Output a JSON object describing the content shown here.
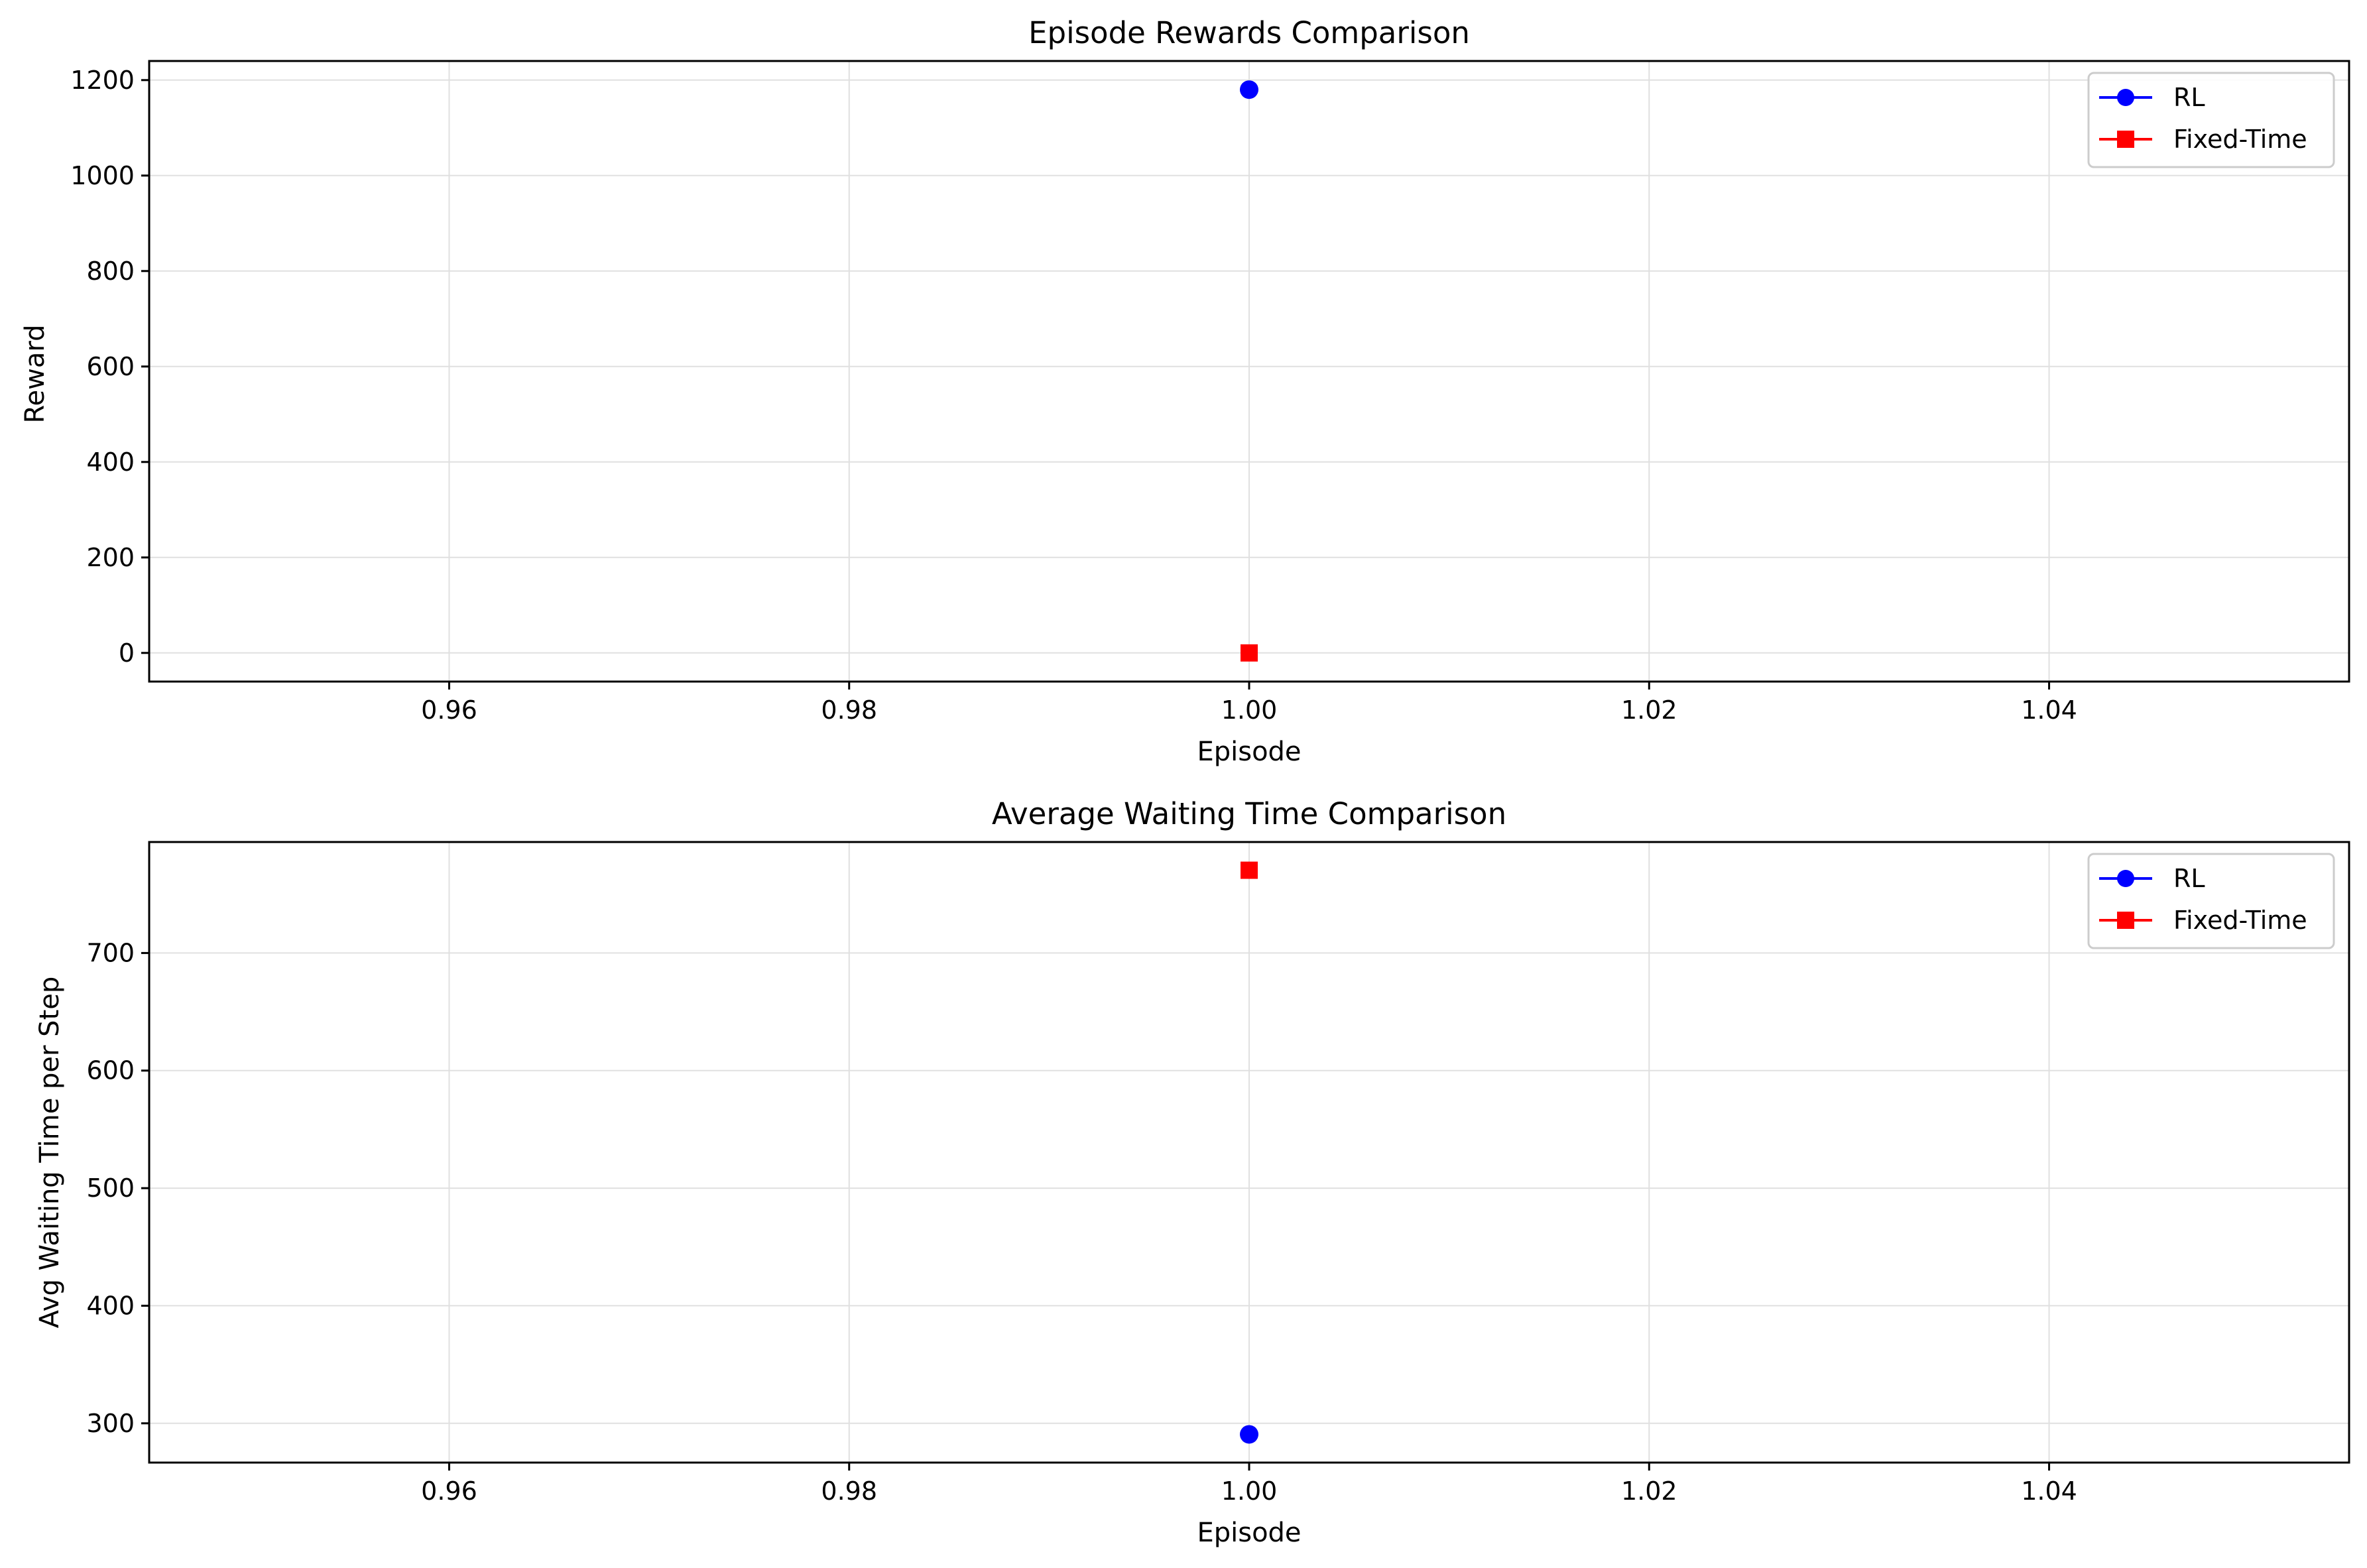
{
  "colors": {
    "RL": "#0000ff",
    "Fixed-Time": "#ff0000",
    "grid": "#e0e0e0",
    "frame": "#000000",
    "legend_border": "#cccccc"
  },
  "chart_data": [
    {
      "type": "scatter",
      "title": "Episode Rewards Comparison",
      "xlabel": "Episode",
      "ylabel": "Reward",
      "xlim": [
        0.945,
        1.055
      ],
      "ylim": [
        -60,
        1240
      ],
      "xticks": [
        0.96,
        0.98,
        1.0,
        1.02,
        1.04
      ],
      "xtick_labels": [
        "0.96",
        "0.98",
        "1.00",
        "1.02",
        "1.04"
      ],
      "yticks": [
        0,
        200,
        400,
        600,
        800,
        1000,
        1200
      ],
      "ytick_labels": [
        "0",
        "200",
        "400",
        "600",
        "800",
        "1000",
        "1200"
      ],
      "grid": true,
      "legend_placement": "top-right",
      "series": [
        {
          "name": "RL",
          "marker": "circle",
          "x": [
            1.0
          ],
          "y": [
            1180
          ]
        },
        {
          "name": "Fixed-Time",
          "marker": "square",
          "x": [
            1.0
          ],
          "y": [
            0
          ]
        }
      ]
    },
    {
      "type": "scatter",
      "title": "Average Waiting Time Comparison",
      "xlabel": "Episode",
      "ylabel": "Avg Waiting Time per Step",
      "xlim": [
        0.945,
        1.055
      ],
      "ylim": [
        266.6,
        794.4
      ],
      "xticks": [
        0.96,
        0.98,
        1.0,
        1.02,
        1.04
      ],
      "xtick_labels": [
        "0.96",
        "0.98",
        "1.00",
        "1.02",
        "1.04"
      ],
      "yticks": [
        300,
        400,
        500,
        600,
        700
      ],
      "ytick_labels": [
        "300",
        "400",
        "500",
        "600",
        "700"
      ],
      "grid": true,
      "legend_placement": "top-right",
      "series": [
        {
          "name": "RL",
          "marker": "circle",
          "x": [
            1.0
          ],
          "y": [
            290.6
          ]
        },
        {
          "name": "Fixed-Time",
          "marker": "square",
          "x": [
            1.0
          ],
          "y": [
            770.4
          ]
        }
      ]
    }
  ]
}
